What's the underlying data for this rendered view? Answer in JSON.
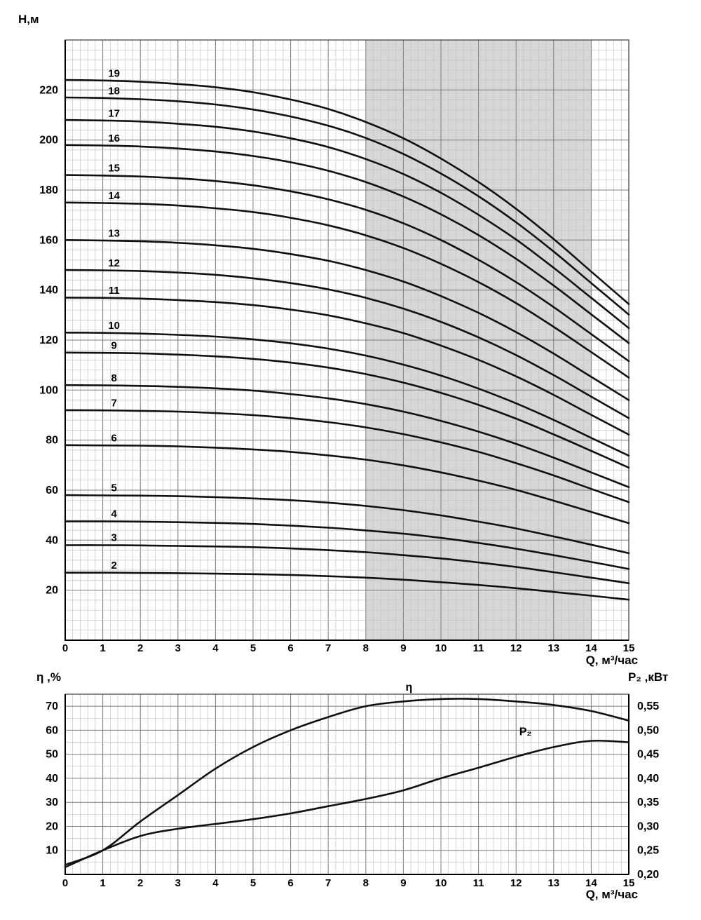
{
  "figure": {
    "background": "#ffffff",
    "curve_color": "#101010",
    "grid_minor_color": "#c3c3c3",
    "grid_major_color": "#7d7d7d"
  },
  "chart_data": [
    {
      "type": "line",
      "name": "head-vs-flow",
      "ylabel": "Н,м",
      "xlabel": "Q, м³/час",
      "xlim": [
        0,
        15
      ],
      "ylim": [
        0,
        240
      ],
      "x_major": 1,
      "x_minor": 0.2,
      "y_major": 20,
      "y_minor": 4,
      "x_ticks": [
        0,
        1,
        2,
        3,
        4,
        5,
        6,
        7,
        8,
        9,
        10,
        11,
        12,
        13,
        14,
        15
      ],
      "y_ticks": [
        20,
        40,
        60,
        80,
        100,
        120,
        140,
        160,
        180,
        200,
        220
      ],
      "recommended_range": {
        "x0": 8,
        "x1": 14,
        "color": "#d7d7d7"
      },
      "x": [
        0,
        1,
        2,
        3,
        4,
        5,
        6,
        7,
        8,
        9,
        10,
        11,
        12,
        13,
        14,
        15
      ],
      "series_label_x": 1.3,
      "series": [
        {
          "label": "19",
          "values": [
            224,
            223.8,
            223.3,
            222.4,
            221.1,
            219.1,
            216.2,
            212.4,
            207.2,
            200.7,
            192.6,
            183.2,
            172.5,
            160.4,
            147.4,
            134.4
          ]
        },
        {
          "label": "18",
          "values": [
            217,
            216.8,
            216.3,
            215.5,
            214.2,
            212.2,
            209.4,
            205.7,
            200.8,
            194.4,
            186.6,
            177.5,
            167.1,
            155.4,
            142.8,
            130.2
          ]
        },
        {
          "label": "17",
          "values": [
            208,
            207.8,
            207.4,
            206.5,
            205.3,
            203.4,
            200.7,
            197.2,
            192.4,
            186.4,
            178.9,
            170.1,
            160.2,
            148.9,
            136.9,
            124.8
          ]
        },
        {
          "label": "16",
          "values": [
            198,
            197.8,
            197.4,
            196.6,
            195.4,
            193.6,
            191.1,
            187.7,
            183.2,
            177.4,
            170.3,
            162,
            152.5,
            141.8,
            130.3,
            118.8
          ]
        },
        {
          "label": "15",
          "values": [
            186,
            185.8,
            185.4,
            184.7,
            183.6,
            181.9,
            179.5,
            176.3,
            172.1,
            166.7,
            160,
            152.1,
            143.2,
            133.2,
            122.4,
            111.6
          ]
        },
        {
          "label": "14",
          "values": [
            175,
            174.8,
            174.5,
            173.8,
            172.7,
            171.2,
            168.9,
            165.9,
            161.9,
            156.8,
            150.5,
            143.2,
            134.8,
            125.3,
            115.2,
            105
          ]
        },
        {
          "label": "13",
          "values": [
            160,
            159.8,
            159.5,
            158.9,
            157.9,
            156.5,
            154.4,
            151.7,
            148,
            143.4,
            137.6,
            130.9,
            123.2,
            114.6,
            105.3,
            96
          ]
        },
        {
          "label": "12",
          "values": [
            148,
            147.9,
            147.6,
            147,
            146.1,
            144.7,
            142.8,
            140.3,
            136.9,
            132.6,
            127.3,
            121.1,
            114,
            106,
            97.4,
            88.8
          ]
        },
        {
          "label": "11",
          "values": [
            137,
            136.9,
            136.6,
            136,
            135.2,
            134,
            132.2,
            129.9,
            126.7,
            122.8,
            117.8,
            112.1,
            105.5,
            98.1,
            90.1,
            82.2
          ]
        },
        {
          "label": "10",
          "values": [
            123,
            122.9,
            122.6,
            122.1,
            121.4,
            120.3,
            118.7,
            116.6,
            113.8,
            110.2,
            105.8,
            100.6,
            94.7,
            88.1,
            80.9,
            73.8
          ]
        },
        {
          "label": "9",
          "values": [
            115,
            114.9,
            114.7,
            114.2,
            113.5,
            112.5,
            111,
            109,
            106.4,
            103,
            98.9,
            94.1,
            88.6,
            82.3,
            75.7,
            69
          ]
        },
        {
          "label": "8",
          "values": [
            102,
            101.9,
            101.7,
            101.3,
            100.7,
            99.8,
            98.4,
            96.7,
            94.4,
            91.4,
            87.7,
            83.4,
            78.5,
            73,
            67.1,
            61.2
          ]
        },
        {
          "label": "7",
          "values": [
            92,
            91.9,
            91.7,
            91.4,
            90.8,
            90,
            88.8,
            87.2,
            85.1,
            82.4,
            79.1,
            75.3,
            70.8,
            65.9,
            60.5,
            55.2
          ]
        },
        {
          "label": "6",
          "values": [
            78,
            77.9,
            77.8,
            77.5,
            77,
            76.3,
            75.3,
            73.9,
            72.2,
            69.9,
            67.1,
            63.8,
            60.1,
            55.8,
            51.3,
            46.8
          ]
        },
        {
          "label": "5",
          "values": [
            58,
            57.9,
            57.8,
            57.6,
            57.2,
            56.7,
            56,
            55,
            53.7,
            52,
            49.9,
            47.4,
            44.7,
            41.5,
            38.2,
            34.8
          ]
        },
        {
          "label": "4",
          "values": [
            47.5,
            47.5,
            47.4,
            47.2,
            46.9,
            46.5,
            45.8,
            45,
            43.9,
            42.6,
            40.9,
            38.9,
            36.6,
            34,
            31.3,
            28.5
          ]
        },
        {
          "label": "3",
          "values": [
            38,
            38,
            37.9,
            37.7,
            37.5,
            37.2,
            36.7,
            36,
            35.2,
            34,
            32.7,
            31.1,
            29.3,
            27.2,
            25,
            22.8
          ]
        },
        {
          "label": "2",
          "values": [
            27,
            27,
            26.9,
            26.8,
            26.6,
            26.4,
            26.1,
            25.6,
            25,
            24.2,
            23.2,
            22.1,
            20.8,
            19.3,
            17.8,
            16.2
          ]
        }
      ]
    },
    {
      "type": "line",
      "name": "efficiency-and-power-vs-flow",
      "ylabel_left": "η ,%",
      "ylabel_right": "Р₂ ,кВт",
      "xlabel": "Q, м³/час",
      "xlim": [
        0,
        15
      ],
      "ylim_left": [
        0,
        75
      ],
      "ylim_right": [
        0.2,
        0.575
      ],
      "x_major": 1,
      "x_minor": 0.2,
      "y_major": 10,
      "y_minor": 5,
      "x_ticks": [
        0,
        1,
        2,
        3,
        4,
        5,
        6,
        7,
        8,
        9,
        10,
        11,
        12,
        13,
        14,
        15
      ],
      "left_ticks": [
        10,
        20,
        30,
        40,
        50,
        60,
        70
      ],
      "right_ticks": [
        {
          "label": "0,20",
          "value": 0.2
        },
        {
          "label": "0,25",
          "value": 0.25
        },
        {
          "label": "0,30",
          "value": 0.3
        },
        {
          "label": "0,35",
          "value": 0.35
        },
        {
          "label": "0,40",
          "value": 0.4
        },
        {
          "label": "0,45",
          "value": 0.45
        },
        {
          "label": "0,50",
          "value": 0.5
        },
        {
          "label": "0,55",
          "value": 0.55
        }
      ],
      "x": [
        0,
        1,
        2,
        3,
        4,
        5,
        6,
        7,
        8,
        9,
        10,
        11,
        12,
        13,
        14,
        15
      ],
      "series": [
        {
          "label": "η",
          "axis": "left",
          "values": [
            4,
            10,
            22,
            33,
            44,
            53,
            60,
            65.5,
            70,
            72,
            73,
            73,
            72,
            70.5,
            68,
            64
          ],
          "label_pos": {
            "x": 9.15,
            "y": 76.5
          }
        },
        {
          "label": "Р₂",
          "axis": "right",
          "values": [
            0.215,
            0.25,
            0.28,
            0.295,
            0.305,
            0.315,
            0.327,
            0.342,
            0.357,
            0.375,
            0.4,
            0.422,
            0.445,
            0.465,
            0.478,
            0.475
          ],
          "label_pos": {
            "x": 12.25,
            "y": 0.49
          }
        }
      ]
    }
  ]
}
